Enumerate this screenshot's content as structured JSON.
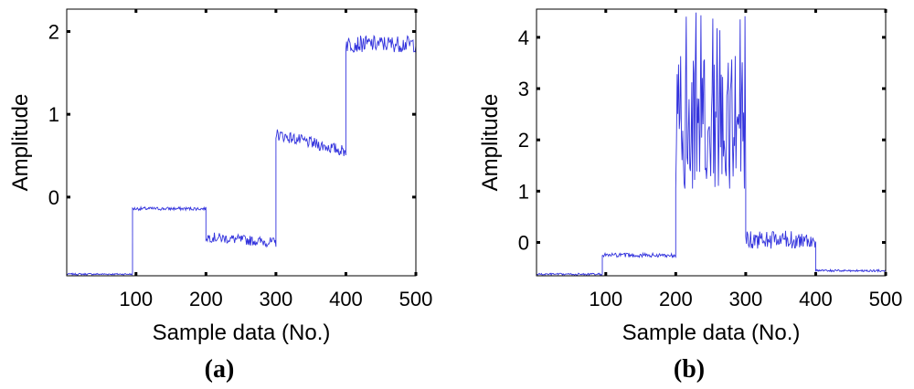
{
  "chart_data": [
    {
      "type": "line",
      "panel_label": "(a)",
      "xlabel": "Sample data (No.)",
      "ylabel": "Amplitude",
      "xlim": [
        1,
        500
      ],
      "ylim": [
        -0.95,
        2.27
      ],
      "xticks": [
        100,
        200,
        300,
        400,
        500
      ],
      "yticks": [
        0,
        1,
        2
      ],
      "grid": false,
      "line_color": "#3333dd",
      "segments": [
        {
          "x_start": 1,
          "x_end": 95,
          "mean": -0.93,
          "noise": 0.01
        },
        {
          "x_start": 95,
          "x_end": 200,
          "mean": -0.14,
          "noise": 0.02
        },
        {
          "x_start": 200,
          "x_end": 300,
          "mean": -0.48,
          "noise": 0.06,
          "trend_end": -0.55
        },
        {
          "x_start": 300,
          "x_end": 400,
          "mean": 0.76,
          "noise": 0.07,
          "trend_end": 0.55
        },
        {
          "x_start": 400,
          "x_end": 500,
          "mean": 1.85,
          "noise": 0.1
        }
      ]
    },
    {
      "type": "line",
      "panel_label": "(b)",
      "xlabel": "Sample data (No.)",
      "ylabel": "Amplitude",
      "xlim": [
        1,
        500
      ],
      "ylim": [
        -0.65,
        4.55
      ],
      "xticks": [
        100,
        200,
        300,
        400,
        500
      ],
      "yticks": [
        0,
        1,
        2,
        3,
        4
      ],
      "grid": false,
      "line_color": "#3333dd",
      "segments": [
        {
          "x_start": 1,
          "x_end": 95,
          "mean": -0.62,
          "noise": 0.02
        },
        {
          "x_start": 95,
          "x_end": 200,
          "mean": -0.25,
          "noise": 0.04
        },
        {
          "x_start": 200,
          "x_end": 300,
          "mean": 2.2,
          "noise": 0.9,
          "peak": 4.5
        },
        {
          "x_start": 300,
          "x_end": 400,
          "mean": 0.05,
          "noise": 0.18
        },
        {
          "x_start": 400,
          "x_end": 500,
          "mean": -0.55,
          "noise": 0.02
        }
      ]
    }
  ]
}
